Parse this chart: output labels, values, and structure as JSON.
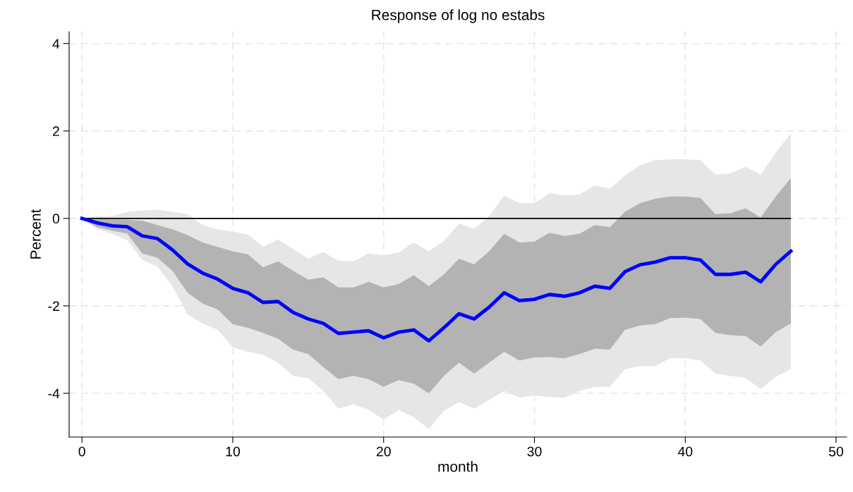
{
  "chart_data": {
    "type": "line",
    "title": "Response of log no estabs",
    "xlabel": "month",
    "ylabel": "Percent",
    "x": [
      0,
      1,
      2,
      3,
      4,
      5,
      6,
      7,
      8,
      9,
      10,
      11,
      12,
      13,
      14,
      15,
      16,
      17,
      18,
      19,
      20,
      21,
      22,
      23,
      24,
      25,
      26,
      27,
      28,
      29,
      30,
      31,
      32,
      33,
      34,
      35,
      36,
      37,
      38,
      39,
      40,
      41,
      42,
      43,
      44,
      45,
      46,
      47
    ],
    "series": [
      {
        "color": "#e6e6e6",
        "values": [
          null,
          null,
          null,
          null,
          null,
          null,
          null,
          null,
          null,
          null,
          null,
          null,
          null,
          null,
          null,
          null,
          null,
          null,
          null,
          null,
          null,
          null,
          null,
          null,
          null,
          null,
          null,
          null,
          null,
          null,
          null,
          null,
          null,
          null,
          null,
          null,
          null,
          null,
          null,
          null,
          null,
          null,
          null,
          null,
          null,
          null,
          null,
          null
        ],
        "upper": [
          0,
          0.05,
          0.05,
          0.15,
          0.18,
          0.2,
          0.15,
          0.1,
          -0.15,
          -0.25,
          -0.3,
          -0.37,
          -0.65,
          -0.48,
          -0.7,
          -0.92,
          -0.77,
          -0.97,
          -0.98,
          -0.8,
          -0.85,
          -0.78,
          -0.55,
          -0.75,
          -0.52,
          -0.12,
          -0.24,
          0.05,
          0.52,
          0.35,
          0.35,
          0.58,
          0.52,
          0.55,
          0.75,
          0.68,
          0.98,
          1.22,
          1.33,
          1.35,
          1.35,
          1.33,
          1.0,
          1.03,
          1.18,
          1.0,
          1.5,
          1.95
        ],
        "lower": [
          0,
          -0.25,
          -0.35,
          -0.5,
          -0.95,
          -1.1,
          -1.55,
          -2.2,
          -2.4,
          -2.55,
          -2.95,
          -3.05,
          -3.12,
          -3.3,
          -3.6,
          -3.65,
          -3.95,
          -4.35,
          -4.25,
          -4.38,
          -4.6,
          -4.38,
          -4.55,
          -4.82,
          -4.4,
          -4.2,
          -4.35,
          -4.15,
          -3.95,
          -4.1,
          -4.05,
          -4.08,
          -4.1,
          -3.95,
          -3.85,
          -3.85,
          -3.45,
          -3.38,
          -3.38,
          -3.2,
          -3.2,
          -3.25,
          -3.55,
          -3.6,
          -3.65,
          -3.9,
          -3.62,
          -3.45
        ]
      },
      {
        "color": "#b3b3b3",
        "values": [
          null,
          null,
          null,
          null,
          null,
          null,
          null,
          null,
          null,
          null,
          null,
          null,
          null,
          null,
          null,
          null,
          null,
          null,
          null,
          null,
          null,
          null,
          null,
          null,
          null,
          null,
          null,
          null,
          null,
          null,
          null,
          null,
          null,
          null,
          null,
          null,
          null,
          null,
          null,
          null,
          null,
          null,
          null,
          null,
          null,
          null,
          null,
          null
        ],
        "upper": [
          0,
          -0.02,
          -0.02,
          -0.03,
          -0.05,
          -0.15,
          -0.25,
          -0.38,
          -0.55,
          -0.65,
          -0.75,
          -0.82,
          -1.12,
          -0.98,
          -1.2,
          -1.4,
          -1.35,
          -1.58,
          -1.58,
          -1.45,
          -1.58,
          -1.5,
          -1.3,
          -1.55,
          -1.28,
          -0.92,
          -1.05,
          -0.75,
          -0.35,
          -0.55,
          -0.53,
          -0.33,
          -0.4,
          -0.35,
          -0.15,
          -0.2,
          0.15,
          0.35,
          0.45,
          0.5,
          0.5,
          0.47,
          0.1,
          0.12,
          0.23,
          0.02,
          0.5,
          0.92
        ],
        "lower": [
          0,
          -0.2,
          -0.28,
          -0.35,
          -0.8,
          -0.9,
          -1.2,
          -1.7,
          -1.95,
          -2.08,
          -2.42,
          -2.5,
          -2.62,
          -2.75,
          -3.0,
          -3.1,
          -3.4,
          -3.68,
          -3.6,
          -3.68,
          -3.85,
          -3.7,
          -3.78,
          -4.0,
          -3.6,
          -3.3,
          -3.55,
          -3.3,
          -3.05,
          -3.25,
          -3.18,
          -3.17,
          -3.2,
          -3.1,
          -2.98,
          -3.0,
          -2.55,
          -2.45,
          -2.42,
          -2.28,
          -2.27,
          -2.3,
          -2.62,
          -2.67,
          -2.69,
          -2.93,
          -2.6,
          -2.4
        ]
      },
      {
        "color": "#0000ff",
        "values": [
          0,
          -0.1,
          -0.17,
          -0.19,
          -0.4,
          -0.46,
          -0.72,
          -1.04,
          -1.25,
          -1.39,
          -1.6,
          -1.7,
          -1.92,
          -1.9,
          -2.15,
          -2.3,
          -2.4,
          -2.63,
          -2.6,
          -2.57,
          -2.73,
          -2.6,
          -2.55,
          -2.8,
          -2.5,
          -2.18,
          -2.3,
          -2.03,
          -1.7,
          -1.88,
          -1.85,
          -1.74,
          -1.78,
          -1.7,
          -1.55,
          -1.6,
          -1.22,
          -1.06,
          -1.0,
          -0.9,
          -0.9,
          -0.95,
          -1.28,
          -1.28,
          -1.23,
          -1.45,
          -1.05,
          -0.75
        ]
      }
    ],
    "ref_lines": [
      {
        "axis": "y",
        "value": 0,
        "color": "#000000"
      }
    ],
    "xlim": [
      -0.85,
      50.7
    ],
    "ylim": [
      -5.0,
      4.27
    ],
    "xticks": [
      0,
      10,
      20,
      30,
      40,
      50
    ],
    "yticks": [
      -4,
      -2,
      0,
      2,
      4
    ],
    "grid": true,
    "legend": false,
    "marker": "none",
    "line_style": "solid"
  }
}
